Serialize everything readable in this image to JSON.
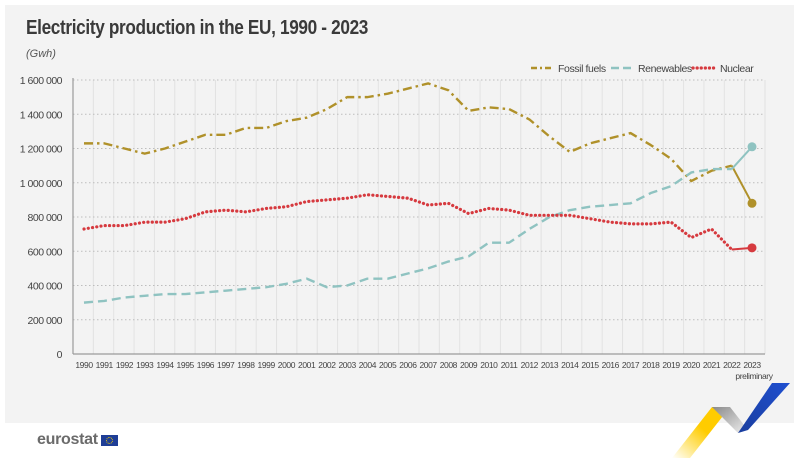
{
  "header": {
    "title": "Electricity production in the EU, 1990 - 2023",
    "unit": "(Gwh)"
  },
  "footer": {
    "logo_text": "eurostat",
    "logo_flag": "eu-flag-icon"
  },
  "chart_data": {
    "type": "line",
    "title": "Electricity production in the EU, 1990 - 2023",
    "subtitle": "(Gwh)",
    "xlabel": "",
    "ylabel": "Gwh",
    "ylim": [
      0,
      1600000
    ],
    "yticks": [
      0,
      200000,
      400000,
      600000,
      800000,
      1000000,
      1200000,
      1400000,
      1600000
    ],
    "ytick_labels": [
      "0",
      "200 000",
      "400 000",
      "600 000",
      "800 000",
      "1 000 000",
      "1 200 000",
      "1 400 000",
      "1 600 000"
    ],
    "grid": true,
    "legend": "top-right",
    "x": [
      "1990",
      "1991",
      "1992",
      "1993",
      "1994",
      "1995",
      "1996",
      "1997",
      "1998",
      "1999",
      "2000",
      "2001",
      "2002",
      "2003",
      "2004",
      "2005",
      "2006",
      "2007",
      "2008",
      "2009",
      "2010",
      "2011",
      "2012",
      "2013",
      "2014",
      "2015",
      "2016",
      "2017",
      "2018",
      "2019",
      "2020",
      "2021",
      "2022",
      "2023"
    ],
    "x_annotation": {
      "category": "2023",
      "text": "preliminary"
    },
    "series": [
      {
        "name": "Fossil fuels",
        "color": "#b0912a",
        "style": "dash-dot",
        "values": [
          1230000,
          1230000,
          1200000,
          1170000,
          1200000,
          1240000,
          1280000,
          1280000,
          1320000,
          1320000,
          1360000,
          1380000,
          1430000,
          1500000,
          1500000,
          1520000,
          1550000,
          1580000,
          1540000,
          1420000,
          1440000,
          1430000,
          1370000,
          1270000,
          1180000,
          1230000,
          1260000,
          1290000,
          1220000,
          1140000,
          1010000,
          1070000,
          1100000,
          880000
        ]
      },
      {
        "name": "Renewables",
        "color": "#8fc3c1",
        "style": "dashed",
        "values": [
          300000,
          310000,
          330000,
          340000,
          350000,
          350000,
          360000,
          370000,
          380000,
          390000,
          410000,
          440000,
          390000,
          400000,
          440000,
          440000,
          470000,
          500000,
          540000,
          570000,
          650000,
          650000,
          730000,
          800000,
          840000,
          860000,
          870000,
          880000,
          940000,
          980000,
          1060000,
          1080000,
          1080000,
          1210000
        ]
      },
      {
        "name": "Nuclear",
        "color": "#d63a3f",
        "style": "dotted",
        "values": [
          730000,
          750000,
          750000,
          770000,
          770000,
          790000,
          830000,
          840000,
          830000,
          850000,
          860000,
          890000,
          900000,
          910000,
          930000,
          920000,
          910000,
          870000,
          880000,
          820000,
          850000,
          840000,
          810000,
          810000,
          810000,
          790000,
          770000,
          760000,
          760000,
          770000,
          680000,
          730000,
          610000,
          620000
        ]
      }
    ]
  }
}
